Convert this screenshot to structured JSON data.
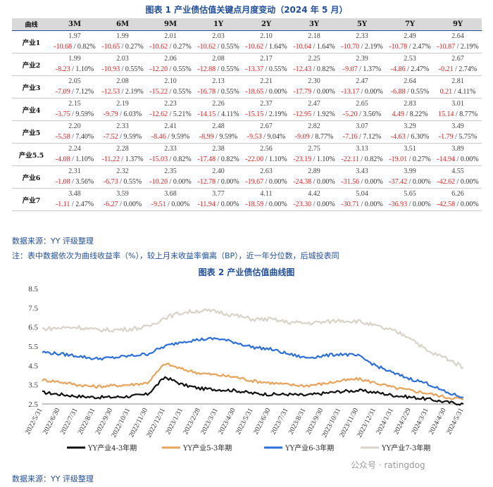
{
  "table_title": "图表 1 产业债估值关键点月度变动（2024 年 5 月）",
  "corner_label": "曲线",
  "tenors": [
    "3M",
    "6M",
    "9M",
    "1Y",
    "2Y",
    "3Y",
    "5Y",
    "7Y",
    "9Y"
  ],
  "rows": [
    {
      "name": "产业1",
      "yields": [
        "1.97",
        "1.99",
        "2.01",
        "2.03",
        "2.10",
        "2.18",
        "2.33",
        "2.49",
        "2.64"
      ],
      "changes": [
        [
          "-10.68",
          "0.82%"
        ],
        [
          "-10.65",
          "0.27%"
        ],
        [
          "-10.62",
          "0.27%"
        ],
        [
          "-10.62",
          "0.55%"
        ],
        [
          "-10.62",
          "1.64%"
        ],
        [
          "-10.64",
          "1.64%"
        ],
        [
          "-10.70",
          "2.19%"
        ],
        [
          "-10.78",
          "2.47%"
        ],
        [
          "-10.87",
          "2.19%"
        ]
      ]
    },
    {
      "name": "产业2",
      "yields": [
        "1.99",
        "2.03",
        "2.06",
        "2.08",
        "2.17",
        "2.25",
        "2.39",
        "2.53",
        "2.67"
      ],
      "changes": [
        [
          "-8.23",
          "1.10%"
        ],
        [
          "-10.93",
          "0.55%"
        ],
        [
          "-12.20",
          "0.55%"
        ],
        [
          "-12.88",
          "0.55%"
        ],
        [
          "-13.37",
          "0.55%"
        ],
        [
          "-12.43",
          "0.82%"
        ],
        [
          "-9.07",
          "1.37%"
        ],
        [
          "-4.86",
          "2.47%"
        ],
        [
          "-0.21",
          "2.74%"
        ]
      ]
    },
    {
      "name": "产业3",
      "yields": [
        "2.05",
        "2.08",
        "2.10",
        "2.13",
        "2.21",
        "2.30",
        "2.47",
        "2.64",
        "2.81"
      ],
      "changes": [
        [
          "-7.09",
          "7.12%"
        ],
        [
          "-12.53",
          "2.19%"
        ],
        [
          "-15.22",
          "0.55%"
        ],
        [
          "-16.78",
          "0.55%"
        ],
        [
          "-18.65",
          "0.00%"
        ],
        [
          "-17.79",
          "0.00%"
        ],
        [
          "-13.17",
          "0.00%"
        ],
        [
          "-6.88",
          "0.55%"
        ],
        [
          "0.21",
          "4.11%"
        ]
      ]
    },
    {
      "name": "产业4",
      "yields": [
        "2.15",
        "2.19",
        "2.23",
        "2.26",
        "2.37",
        "2.47",
        "2.65",
        "2.83",
        "3.01"
      ],
      "changes": [
        [
          "-3.75",
          "9.59%"
        ],
        [
          "-9.79",
          "6.03%"
        ],
        [
          "-12.62",
          "5.21%"
        ],
        [
          "-14.15",
          "4.11%"
        ],
        [
          "-15.15",
          "2.19%"
        ],
        [
          "-12.95",
          "1.92%"
        ],
        [
          "-5.20",
          "3.56%"
        ],
        [
          "4.49",
          "8.22%"
        ],
        [
          "15.14",
          "8.77%"
        ]
      ]
    },
    {
      "name": "产业5",
      "yields": [
        "2.20",
        "2.33",
        "2.41",
        "2.48",
        "2.67",
        "2.82",
        "3.07",
        "3.29",
        "3.49"
      ],
      "changes": [
        [
          "-5.58",
          "7.40%"
        ],
        [
          "-7.52",
          "9.59%"
        ],
        [
          "-8.46",
          "9.59%"
        ],
        [
          "-8.99",
          "9.59%"
        ],
        [
          "-9.53",
          "9.04%"
        ],
        [
          "-9.09",
          "8.77%"
        ],
        [
          "-7.16",
          "7.12%"
        ],
        [
          "-4.63",
          "6.30%"
        ],
        [
          "-1.79",
          "5.75%"
        ]
      ]
    },
    {
      "name": "产业5.5",
      "yields": [
        "2.24",
        "2.28",
        "2.33",
        "2.38",
        "2.56",
        "2.75",
        "3.13",
        "3.51",
        "3.89"
      ],
      "changes": [
        [
          "-4.08",
          "1.10%"
        ],
        [
          "-11.22",
          "1.37%"
        ],
        [
          "-15.03",
          "0.82%"
        ],
        [
          "-17.48",
          "0.82%"
        ],
        [
          "-22.00",
          "1.10%"
        ],
        [
          "-23.19",
          "1.10%"
        ],
        [
          "-22.11",
          "0.82%"
        ],
        [
          "-19.01",
          "0.27%"
        ],
        [
          "-14.94",
          "0.00%"
        ]
      ]
    },
    {
      "name": "产业6",
      "yields": [
        "2.31",
        "2.32",
        "2.35",
        "2.40",
        "2.63",
        "2.89",
        "3.43",
        "3.99",
        "4.55"
      ],
      "changes": [
        [
          "-1.08",
          "3.56%"
        ],
        [
          "-6.73",
          "0.55%"
        ],
        [
          "-10.20",
          "0.00%"
        ],
        [
          "-12.78",
          "0.00%"
        ],
        [
          "-19.67",
          "0.00%"
        ],
        [
          "-24.38",
          "0.00%"
        ],
        [
          "-31.56",
          "0.00%"
        ],
        [
          "-37.42",
          "0.00%"
        ],
        [
          "-42.62",
          "0.00%"
        ]
      ]
    },
    {
      "name": "产业7",
      "yields": [
        "3.48",
        "3.59",
        "3.68",
        "3.77",
        "4.11",
        "4.42",
        "5.04",
        "5.65",
        "6.26"
      ],
      "changes": [
        [
          "-1.11",
          "2.47%"
        ],
        [
          "-6.27",
          "0.00%"
        ],
        [
          "-9.51",
          "0.00%"
        ],
        [
          "-11.94",
          "0.00%"
        ],
        [
          "-18.59",
          "0.00%"
        ],
        [
          "-23.30",
          "0.00%"
        ],
        [
          "-30.71",
          "0.00%"
        ],
        [
          "-36.93",
          "0.00%"
        ],
        [
          "-42.58",
          "0.00%"
        ]
      ]
    }
  ],
  "source_1": "数据来源：YY 评级整理",
  "note": "注：表中数据依次为曲线收益率（%），较上月末收益率偏离（BP），近一年分位数，后城投表同",
  "chart_title": "图表 2 产业债估值曲线图",
  "source_2": "数据来源：YY 评级整理",
  "watermark": "公众号 · ratingdog",
  "colors": {
    "s1": "#111111",
    "s2": "#e8a35a",
    "s3": "#2a6fdb",
    "s4": "#d9d2c8",
    "title": "#1f4e9a",
    "neg": "#e02020"
  },
  "chart_data": {
    "type": "line",
    "title": "",
    "xlabel": "",
    "ylabel": "",
    "ylim": [
      2.5,
      8.5
    ],
    "yticks": [
      "2.5",
      "3.5",
      "4.5",
      "5.5",
      "6.5",
      "7.5",
      "8.5"
    ],
    "x": [
      "2022/5/31",
      "2022/6/30",
      "2022/7/31",
      "2022/8/31",
      "2022/9/30",
      "2022/10/31",
      "2022/11/30",
      "2022/12/31",
      "2023/1/31",
      "2023/2/28",
      "2023/3/31",
      "2023/4/30",
      "2023/5/31",
      "2023/6/30",
      "2023/7/31",
      "2023/8/31",
      "2023/9/30",
      "2023/10/31",
      "2023/11/30",
      "2023/12/31",
      "2024/1/31",
      "2024/2/29",
      "2024/3/31",
      "2024/4/30",
      "2024/5/31"
    ],
    "legend_position": "bottom",
    "series": [
      {
        "name": "YY产业4-3年期",
        "values": [
          3.1,
          3.0,
          2.9,
          2.85,
          2.85,
          2.9,
          3.0,
          3.9,
          3.5,
          3.3,
          3.25,
          3.2,
          3.05,
          3.0,
          3.0,
          2.95,
          3.05,
          3.15,
          3.2,
          3.1,
          2.95,
          2.85,
          2.75,
          2.6,
          2.5
        ]
      },
      {
        "name": "YY产业5-3年期",
        "values": [
          3.75,
          3.65,
          3.5,
          3.4,
          3.45,
          3.5,
          3.6,
          4.6,
          4.3,
          4.1,
          4.0,
          3.9,
          3.7,
          3.6,
          3.5,
          3.45,
          3.55,
          3.7,
          3.8,
          3.6,
          3.35,
          3.2,
          3.05,
          2.85,
          2.75
        ]
      },
      {
        "name": "YY产业6-3年期",
        "values": [
          5.2,
          5.1,
          5.0,
          4.85,
          4.9,
          5.0,
          5.1,
          5.5,
          5.75,
          5.85,
          5.9,
          5.7,
          5.45,
          5.35,
          5.1,
          4.9,
          5.0,
          5.1,
          5.0,
          4.5,
          4.1,
          3.8,
          3.55,
          3.1,
          2.85
        ]
      },
      {
        "name": "YY产业7-3年期",
        "values": [
          6.4,
          6.45,
          6.5,
          6.35,
          6.35,
          6.4,
          6.5,
          7.0,
          7.25,
          7.35,
          7.3,
          7.1,
          6.9,
          6.9,
          6.75,
          6.7,
          6.75,
          6.85,
          6.8,
          6.55,
          6.3,
          5.95,
          5.2,
          4.9,
          4.4
        ]
      }
    ]
  }
}
